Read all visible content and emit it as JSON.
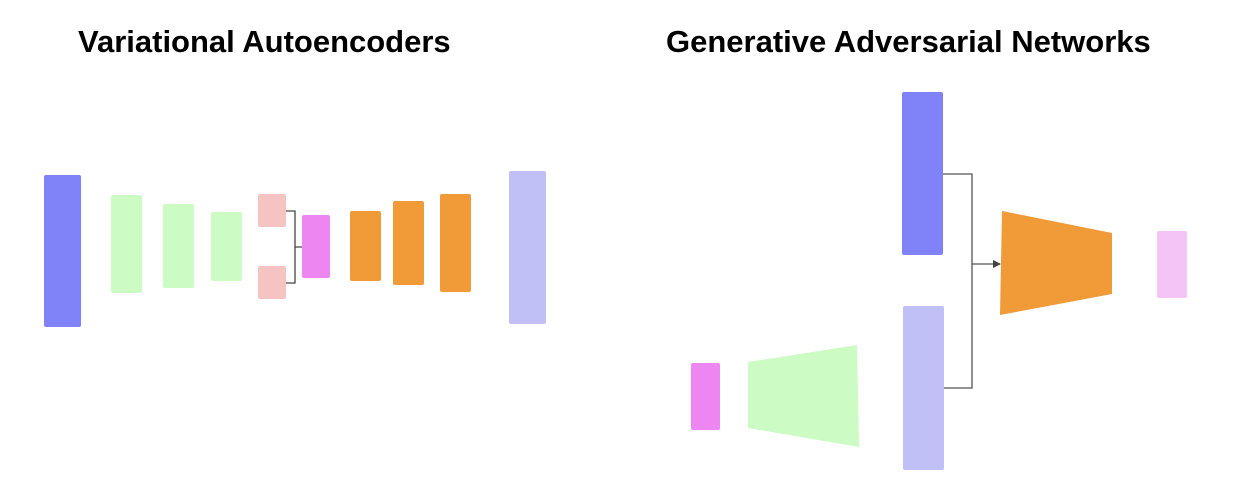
{
  "vae": {
    "title": "Variational Autoencoders",
    "colors": {
      "input": "#8083f7",
      "encoder": "#ccfcc4",
      "latent_params": "#f5c4c2",
      "latent_sample": "#ee86f2",
      "decoder": "#f09a38",
      "output": "#c0c0f6",
      "connector": "#444444"
    }
  },
  "gan": {
    "title": "Generative Adversarial Networks",
    "colors": {
      "real_data": "#8083f7",
      "noise": "#ee86f2",
      "generator": "#ccfcc4",
      "generated_data": "#c0c0f6",
      "discriminator": "#f09a38",
      "output": "#f5c4f6",
      "connector": "#555555"
    }
  }
}
